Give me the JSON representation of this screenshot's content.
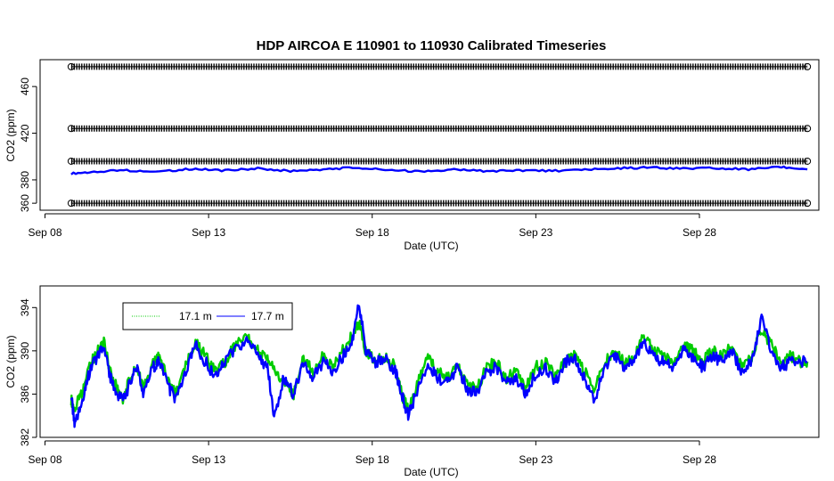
{
  "chart_data": [
    {
      "type": "scatter",
      "title": "HDP   AIRCOA  E   110901  to  110930   Calibrated Timeseries",
      "xlabel": "Date (UTC)",
      "ylabel": "CO2 (ppm)",
      "x_ticks": [
        "Sep 08",
        "Sep 13",
        "Sep 18",
        "Sep 23",
        "Sep 28"
      ],
      "x_tick_days": [
        8,
        13,
        18,
        23,
        28
      ],
      "xlim_days": [
        7.85,
        31.65
      ],
      "y_ticks": [
        360,
        380,
        420,
        460
      ],
      "ylim": [
        354,
        483
      ],
      "x_start_day": 8.8,
      "x_end_day": 31.3,
      "calibration_levels": [
        {
          "name": "",
          "value": 477
        },
        {
          "name": "",
          "value": 424
        },
        {
          "name": "",
          "value": 396
        },
        {
          "name": "",
          "value": 360
        }
      ],
      "series": [
        {
          "name": "",
          "color": "#0000ff",
          "points": [
            [
              8.8,
              385.5
            ],
            [
              9.5,
              386.8
            ],
            [
              10.5,
              388.2
            ],
            [
              11.5,
              387
            ],
            [
              12.5,
              389.5
            ],
            [
              13.5,
              388
            ],
            [
              14.5,
              389.8
            ],
            [
              15.5,
              387.5
            ],
            [
              16.5,
              389
            ],
            [
              17.5,
              390.5
            ],
            [
              18.5,
              388.5
            ],
            [
              19.5,
              387
            ],
            [
              20.5,
              388.8
            ],
            [
              21.5,
              387.5
            ],
            [
              22.5,
              388.2
            ],
            [
              23.5,
              387.8
            ],
            [
              24.5,
              388.5
            ],
            [
              25.5,
              390
            ],
            [
              26.5,
              390.5
            ],
            [
              27.5,
              389.5
            ],
            [
              28.5,
              390.2
            ],
            [
              29.5,
              389
            ],
            [
              30.5,
              391
            ],
            [
              31.3,
              389
            ]
          ]
        }
      ]
    },
    {
      "type": "line",
      "title": "",
      "xlabel": "Date (UTC)",
      "ylabel": "CO2 (ppm)",
      "x_ticks": [
        "Sep 08",
        "Sep 13",
        "Sep 18",
        "Sep 23",
        "Sep 28"
      ],
      "x_tick_days": [
        8,
        13,
        18,
        23,
        28
      ],
      "xlim_days": [
        7.85,
        31.65
      ],
      "y_ticks": [
        382,
        386,
        390,
        394
      ],
      "ylim": [
        382,
        396
      ],
      "legend": {
        "position": "top-left",
        "entries": [
          "17.1 m",
          "17.7 m"
        ]
      },
      "series": [
        {
          "name": "17.1 m",
          "color": "#00cc00",
          "points": [
            [
              8.8,
              385.5
            ],
            [
              8.9,
              384.5
            ],
            [
              9.1,
              386
            ],
            [
              9.3,
              388
            ],
            [
              9.5,
              389.5
            ],
            [
              9.8,
              390.8
            ],
            [
              10,
              388
            ],
            [
              10.2,
              386.5
            ],
            [
              10.4,
              385.5
            ],
            [
              10.6,
              387.5
            ],
            [
              10.8,
              388.5
            ],
            [
              11,
              386.5
            ],
            [
              11.3,
              388.8
            ],
            [
              11.5,
              389.5
            ],
            [
              11.8,
              387
            ],
            [
              12,
              386
            ],
            [
              12.3,
              388.5
            ],
            [
              12.6,
              390.8
            ],
            [
              12.9,
              389.5
            ],
            [
              13.2,
              388
            ],
            [
              13.5,
              389
            ],
            [
              13.8,
              390.5
            ],
            [
              14.2,
              391.2
            ],
            [
              14.5,
              390
            ],
            [
              14.8,
              389.2
            ],
            [
              15,
              388.5
            ],
            [
              15.3,
              387
            ],
            [
              15.6,
              386
            ],
            [
              15.9,
              389.5
            ],
            [
              16.2,
              388
            ],
            [
              16.5,
              389.5
            ],
            [
              16.8,
              388.5
            ],
            [
              17.1,
              390
            ],
            [
              17.4,
              391.5
            ],
            [
              17.6,
              392.5
            ],
            [
              17.8,
              390
            ],
            [
              18.1,
              389
            ],
            [
              18.4,
              389.5
            ],
            [
              18.7,
              388.5
            ],
            [
              18.9,
              386
            ],
            [
              19.1,
              384.5
            ],
            [
              19.4,
              387
            ],
            [
              19.7,
              389.5
            ],
            [
              20,
              388
            ],
            [
              20.3,
              387.5
            ],
            [
              20.6,
              388.5
            ],
            [
              20.9,
              387
            ],
            [
              21.2,
              386.5
            ],
            [
              21.5,
              388.5
            ],
            [
              21.8,
              389
            ],
            [
              22.1,
              387.5
            ],
            [
              22.4,
              388
            ],
            [
              22.7,
              386.5
            ],
            [
              23,
              388.5
            ],
            [
              23.3,
              389
            ],
            [
              23.6,
              387.5
            ],
            [
              23.9,
              389
            ],
            [
              24.2,
              389.5
            ],
            [
              24.5,
              388
            ],
            [
              24.8,
              386.5
            ],
            [
              25.1,
              389
            ],
            [
              25.4,
              390
            ],
            [
              25.7,
              389
            ],
            [
              26,
              389.5
            ],
            [
              26.3,
              391.5
            ],
            [
              26.6,
              390
            ],
            [
              26.9,
              389.5
            ],
            [
              27.2,
              389
            ],
            [
              27.5,
              390.5
            ],
            [
              27.8,
              390
            ],
            [
              28.1,
              389
            ],
            [
              28.4,
              390
            ],
            [
              28.7,
              389.5
            ],
            [
              29,
              390.5
            ],
            [
              29.3,
              388.5
            ],
            [
              29.6,
              389.5
            ],
            [
              29.9,
              392
            ],
            [
              30.2,
              390.5
            ],
            [
              30.5,
              389
            ],
            [
              30.8,
              389.5
            ],
            [
              31.1,
              389
            ],
            [
              31.3,
              389
            ]
          ]
        },
        {
          "name": "17.7 m",
          "color": "#0000ff",
          "points": [
            [
              8.8,
              386
            ],
            [
              8.9,
              383
            ],
            [
              9.1,
              385
            ],
            [
              9.3,
              387.5
            ],
            [
              9.5,
              389
            ],
            [
              9.8,
              390.5
            ],
            [
              10,
              387.5
            ],
            [
              10.2,
              386
            ],
            [
              10.4,
              385.5
            ],
            [
              10.6,
              387
            ],
            [
              10.8,
              388.5
            ],
            [
              11,
              386
            ],
            [
              11.3,
              388.5
            ],
            [
              11.5,
              389
            ],
            [
              11.8,
              386.5
            ],
            [
              12,
              385.5
            ],
            [
              12.3,
              388
            ],
            [
              12.6,
              390.5
            ],
            [
              12.9,
              389
            ],
            [
              13.2,
              387.5
            ],
            [
              13.5,
              389
            ],
            [
              13.8,
              390
            ],
            [
              14.2,
              391
            ],
            [
              14.5,
              389.5
            ],
            [
              14.8,
              388.5
            ],
            [
              15,
              384
            ],
            [
              15.3,
              387.5
            ],
            [
              15.6,
              386
            ],
            [
              15.9,
              389
            ],
            [
              16.2,
              387.5
            ],
            [
              16.5,
              389
            ],
            [
              16.8,
              388
            ],
            [
              17.1,
              389.5
            ],
            [
              17.4,
              391
            ],
            [
              17.6,
              394.5
            ],
            [
              17.8,
              390
            ],
            [
              18.1,
              389
            ],
            [
              18.4,
              389.2
            ],
            [
              18.7,
              388.2
            ],
            [
              18.9,
              386
            ],
            [
              19.1,
              384
            ],
            [
              19.4,
              386.5
            ],
            [
              19.7,
              389
            ],
            [
              20,
              387.5
            ],
            [
              20.3,
              387
            ],
            [
              20.6,
              388.5
            ],
            [
              20.9,
              386.5
            ],
            [
              21.2,
              386
            ],
            [
              21.5,
              388
            ],
            [
              21.8,
              388.5
            ],
            [
              22.1,
              387
            ],
            [
              22.4,
              387.5
            ],
            [
              22.7,
              386
            ],
            [
              23,
              388
            ],
            [
              23.3,
              388.5
            ],
            [
              23.6,
              387
            ],
            [
              23.9,
              389
            ],
            [
              24.2,
              389.2
            ],
            [
              24.5,
              387.5
            ],
            [
              24.8,
              385.5
            ],
            [
              25.1,
              388.5
            ],
            [
              25.4,
              389.5
            ],
            [
              25.7,
              388.5
            ],
            [
              26,
              389
            ],
            [
              26.3,
              391
            ],
            [
              26.6,
              389.5
            ],
            [
              26.9,
              389
            ],
            [
              27.2,
              388.5
            ],
            [
              27.5,
              390
            ],
            [
              27.8,
              389.5
            ],
            [
              28.1,
              388.5
            ],
            [
              28.4,
              389.5
            ],
            [
              28.7,
              389
            ],
            [
              29,
              390
            ],
            [
              29.3,
              388
            ],
            [
              29.6,
              389
            ],
            [
              29.9,
              393
            ],
            [
              30.2,
              390
            ],
            [
              30.5,
              388.5
            ],
            [
              30.8,
              389
            ],
            [
              31.1,
              389
            ],
            [
              31.3,
              389
            ]
          ]
        }
      ]
    }
  ]
}
